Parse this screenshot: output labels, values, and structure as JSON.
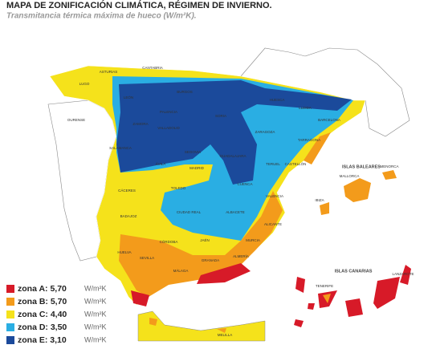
{
  "title": "MAPA DE ZONIFICACIÓN CLIMÁTICA, RÉGIMEN DE INVIERNO.",
  "subtitle": "Transmitancia térmica máxima de hueco (W/m²K).",
  "islands": [
    "ISLAS BALEARES",
    "ISLAS CANARIAS"
  ],
  "regions": [
    "LUGO",
    "OURENSE",
    "ASTURIAS",
    "CANTABRIA",
    "LEÓN",
    "BURGOS",
    "PALENCIA",
    "ZAMORA",
    "VALLADOLID",
    "SALAMANCA",
    "SEGOVIA",
    "ÁVILA",
    "MADRID",
    "SORIA",
    "ZARAGOZA",
    "HUESCA",
    "LLEIDA",
    "BARCELONA",
    "TARRAGONA",
    "TERUEL",
    "GUADALAJARA",
    "CUENCA",
    "CÁCERES",
    "TOLEDO",
    "BADAJOZ",
    "CIUDAD REAL",
    "ALBACETE",
    "VALENCIA",
    "CASTELLÓN",
    "MURCIA",
    "ALICANTE",
    "HUELVA",
    "SEVILLA",
    "CÓRDOBA",
    "JAÉN",
    "GRANADA",
    "MÁLAGA",
    "ALMERÍA",
    "MALLORCA",
    "MENORCA",
    "IBIZA",
    "TENERIFE",
    "LANZAROTE",
    "MELILLA"
  ],
  "legend": [
    {
      "label": "zona A: 5,70",
      "unit": "W/m²K",
      "color": "#d71a28"
    },
    {
      "label": "zona B: 5,70",
      "unit": "W/m²K",
      "color": "#f39b1b"
    },
    {
      "label": "zona C: 4,40",
      "unit": "W/m²K",
      "color": "#f5e21b"
    },
    {
      "label": "zona D: 3,50",
      "unit": "W/m²K",
      "color": "#2aaee3"
    },
    {
      "label": "zona E: 3,10",
      "unit": "W/m²K",
      "color": "#1b4a9b"
    }
  ]
}
